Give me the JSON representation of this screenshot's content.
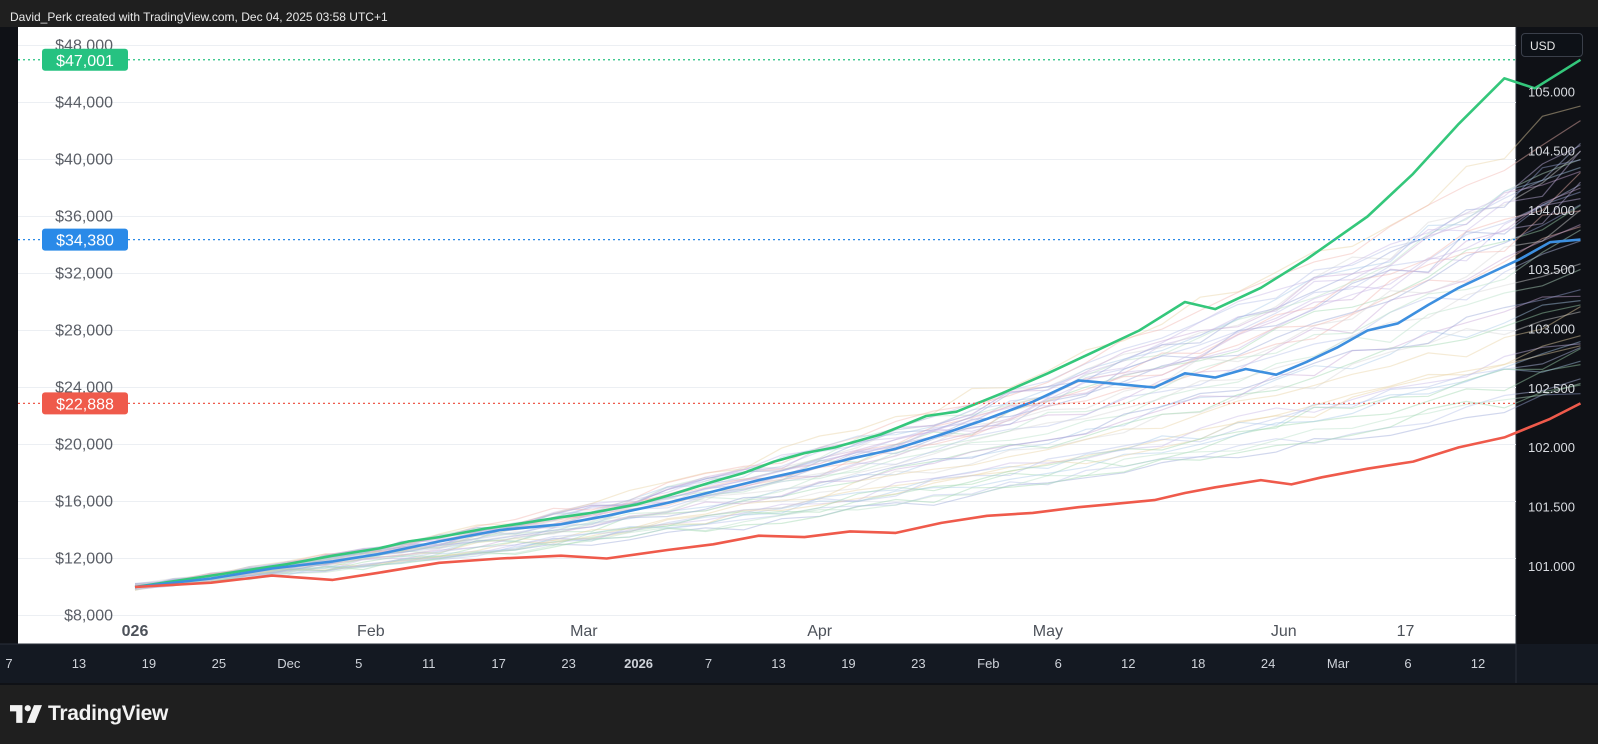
{
  "header": {
    "attribution": "David_Perk created with TradingView.com, Dec 04, 2025 03:58 UTC+1"
  },
  "currency_button": {
    "label": "USD"
  },
  "logo": {
    "text": "TradingView"
  },
  "chart_data": {
    "type": "line",
    "title": "",
    "y_left": {
      "range": [
        6000,
        49300
      ],
      "ticks": [
        {
          "label": "$8,000",
          "value": 8000
        },
        {
          "label": "$12,000",
          "value": 12000
        },
        {
          "label": "$16,000",
          "value": 16000
        },
        {
          "label": "$20,000",
          "value": 20000
        },
        {
          "label": "$24,000",
          "value": 24000
        },
        {
          "label": "$28,000",
          "value": 28000
        },
        {
          "label": "$32,000",
          "value": 32000
        },
        {
          "label": "$36,000",
          "value": 36000
        },
        {
          "label": "$40,000",
          "value": 40000
        },
        {
          "label": "$44,000",
          "value": 44000
        },
        {
          "label": "$48,000",
          "value": 48000
        }
      ]
    },
    "y_right": {
      "range": [
        100.35,
        105.55
      ],
      "ticks": [
        "101.000",
        "101.500",
        "102.000",
        "102.500",
        "103.000",
        "103.500",
        "104.000",
        "104.500",
        "105.000"
      ]
    },
    "x_month_labels": [
      {
        "label": "026",
        "t": 0
      },
      {
        "label": "Feb",
        "t": 31
      },
      {
        "label": "Mar",
        "t": 59
      },
      {
        "label": "Apr",
        "t": 90
      },
      {
        "label": "May",
        "t": 120
      },
      {
        "label": "Jun",
        "t": 151
      },
      {
        "label": "17",
        "t": 167
      }
    ],
    "x_time_scale": [
      "7",
      "13",
      "19",
      "25",
      "Dec",
      "5",
      "11",
      "17",
      "23",
      "2026",
      "7",
      "13",
      "19",
      "23",
      "Feb",
      "6",
      "12",
      "18",
      "24",
      "Mar",
      "6",
      "12"
    ],
    "x_range_days": [
      0,
      181
    ],
    "markers": [
      {
        "label": "$47,001",
        "value": 47001,
        "color": "#26c281"
      },
      {
        "label": "$34,380",
        "value": 34380,
        "color": "#2a8ae8"
      },
      {
        "label": "$22,888",
        "value": 22888,
        "color": "#ef5a4b"
      }
    ],
    "series": [
      {
        "name": "",
        "color": "#34c77b",
        "points": [
          [
            0,
            10000
          ],
          [
            10,
            10800
          ],
          [
            20,
            11600
          ],
          [
            26,
            12200
          ],
          [
            32,
            12700
          ],
          [
            36,
            13200
          ],
          [
            40,
            13500
          ],
          [
            46,
            14100
          ],
          [
            50,
            14400
          ],
          [
            56,
            14900
          ],
          [
            60,
            15200
          ],
          [
            66,
            15800
          ],
          [
            70,
            16400
          ],
          [
            76,
            17400
          ],
          [
            80,
            18000
          ],
          [
            84,
            18800
          ],
          [
            88,
            19400
          ],
          [
            92,
            19800
          ],
          [
            98,
            20700
          ],
          [
            104,
            22000
          ],
          [
            108,
            22300
          ],
          [
            114,
            23600
          ],
          [
            120,
            25000
          ],
          [
            126,
            26500
          ],
          [
            132,
            28000
          ],
          [
            138,
            30000
          ],
          [
            142,
            29500
          ],
          [
            148,
            31000
          ],
          [
            154,
            33000
          ],
          [
            158,
            34500
          ],
          [
            162,
            36000
          ],
          [
            168,
            39000
          ],
          [
            174,
            42500
          ],
          [
            180,
            45700
          ],
          [
            184,
            45000
          ],
          [
            190,
            47001
          ]
        ]
      },
      {
        "name": "",
        "color": "#3d8fdf",
        "points": [
          [
            0,
            10000
          ],
          [
            10,
            10600
          ],
          [
            18,
            11300
          ],
          [
            26,
            11800
          ],
          [
            32,
            12300
          ],
          [
            40,
            13200
          ],
          [
            48,
            14000
          ],
          [
            56,
            14400
          ],
          [
            62,
            15000
          ],
          [
            70,
            15900
          ],
          [
            76,
            16700
          ],
          [
            82,
            17500
          ],
          [
            88,
            18200
          ],
          [
            94,
            19000
          ],
          [
            100,
            19700
          ],
          [
            106,
            20700
          ],
          [
            112,
            21800
          ],
          [
            118,
            23000
          ],
          [
            124,
            24500
          ],
          [
            128,
            24300
          ],
          [
            134,
            24000
          ],
          [
            138,
            25000
          ],
          [
            142,
            24700
          ],
          [
            146,
            25300
          ],
          [
            150,
            24900
          ],
          [
            154,
            25800
          ],
          [
            158,
            26800
          ],
          [
            162,
            28000
          ],
          [
            166,
            28500
          ],
          [
            170,
            29800
          ],
          [
            174,
            31000
          ],
          [
            178,
            32000
          ],
          [
            182,
            33000
          ],
          [
            186,
            34200
          ],
          [
            190,
            34380
          ]
        ]
      },
      {
        "name": "",
        "color": "#ef5a4b",
        "points": [
          [
            0,
            10000
          ],
          [
            10,
            10300
          ],
          [
            18,
            10800
          ],
          [
            26,
            10500
          ],
          [
            32,
            11000
          ],
          [
            40,
            11700
          ],
          [
            48,
            12000
          ],
          [
            56,
            12200
          ],
          [
            62,
            12000
          ],
          [
            70,
            12600
          ],
          [
            76,
            13000
          ],
          [
            82,
            13600
          ],
          [
            88,
            13500
          ],
          [
            94,
            13900
          ],
          [
            100,
            13800
          ],
          [
            106,
            14500
          ],
          [
            112,
            15000
          ],
          [
            118,
            15200
          ],
          [
            124,
            15600
          ],
          [
            128,
            15800
          ],
          [
            134,
            16100
          ],
          [
            138,
            16600
          ],
          [
            142,
            17000
          ],
          [
            148,
            17500
          ],
          [
            152,
            17200
          ],
          [
            156,
            17700
          ],
          [
            162,
            18300
          ],
          [
            168,
            18800
          ],
          [
            174,
            19800
          ],
          [
            180,
            20500
          ],
          [
            186,
            21800
          ],
          [
            190,
            22888
          ]
        ]
      }
    ]
  }
}
